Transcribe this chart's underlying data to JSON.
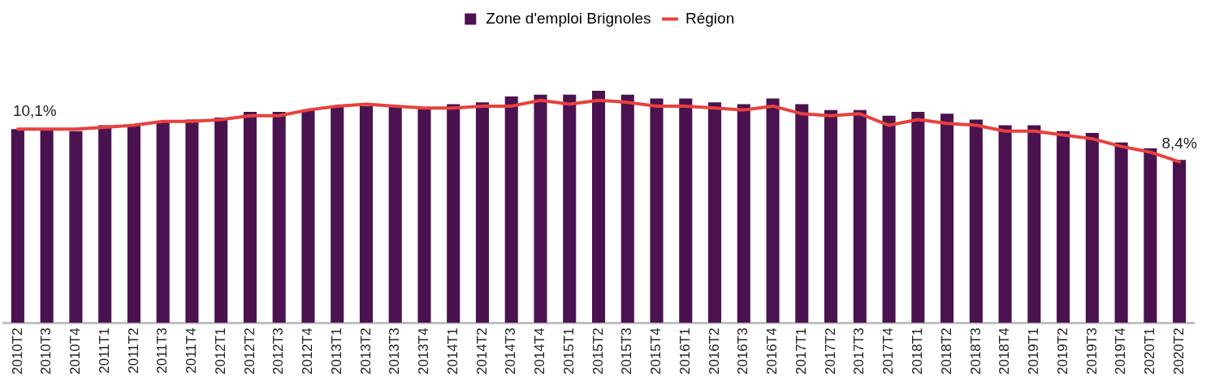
{
  "chart_data": {
    "type": "bar",
    "legend": "top",
    "grid": false,
    "tick_labels": "x",
    "categories": [
      "2010T2",
      "2010T3",
      "2010T4",
      "2011T1",
      "2011T2",
      "2011T3",
      "2011T4",
      "2012T1",
      "2012T2",
      "2012T3",
      "2012T4",
      "2013T1",
      "2013T2",
      "2013T3",
      "2013T4",
      "2014T1",
      "2014T2",
      "2014T3",
      "2014T4",
      "2015T1",
      "2015T2",
      "2015T3",
      "2015T4",
      "2016T1",
      "2016T2",
      "2016T3",
      "2016T4",
      "2017T1",
      "2017T2",
      "2017T3",
      "2017T4",
      "2018T1",
      "2018T2",
      "2018T3",
      "2018T4",
      "2019T1",
      "2019T2",
      "2019T3",
      "2019T4",
      "2020T1",
      "2020T2"
    ],
    "series": [
      {
        "name": "Zone d'emploi Brignoles",
        "color": "#4b1250",
        "values": [
          10.1,
          10.1,
          10.0,
          10.3,
          10.3,
          10.5,
          10.6,
          10.7,
          11.0,
          11.0,
          11.1,
          11.3,
          11.3,
          11.3,
          11.2,
          11.4,
          11.5,
          11.8,
          11.9,
          11.9,
          12.1,
          11.9,
          11.7,
          11.7,
          11.5,
          11.4,
          11.7,
          11.4,
          11.1,
          11.1,
          10.8,
          11.0,
          10.9,
          10.6,
          10.3,
          10.3,
          10.0,
          9.9,
          9.4,
          9.1,
          8.5
        ]
      },
      {
        "name": "Région",
        "type": "line",
        "color": "#e8413c",
        "marker": "none",
        "values": [
          10.1,
          10.1,
          10.1,
          10.2,
          10.3,
          10.5,
          10.5,
          10.6,
          10.8,
          10.8,
          11.1,
          11.3,
          11.4,
          11.3,
          11.2,
          11.2,
          11.3,
          11.3,
          11.6,
          11.4,
          11.6,
          11.5,
          11.3,
          11.3,
          11.2,
          11.1,
          11.3,
          10.9,
          10.8,
          10.9,
          10.3,
          10.6,
          10.4,
          10.3,
          10.0,
          10.0,
          9.8,
          9.6,
          9.2,
          8.9,
          8.4
        ],
        "value_labels": [
          "10,1%",
          null,
          null,
          null,
          null,
          null,
          null,
          null,
          null,
          null,
          null,
          null,
          null,
          null,
          null,
          null,
          null,
          null,
          null,
          null,
          null,
          null,
          null,
          null,
          null,
          null,
          null,
          null,
          null,
          null,
          null,
          null,
          null,
          null,
          null,
          null,
          null,
          null,
          null,
          null,
          "8,4%"
        ]
      }
    ]
  }
}
